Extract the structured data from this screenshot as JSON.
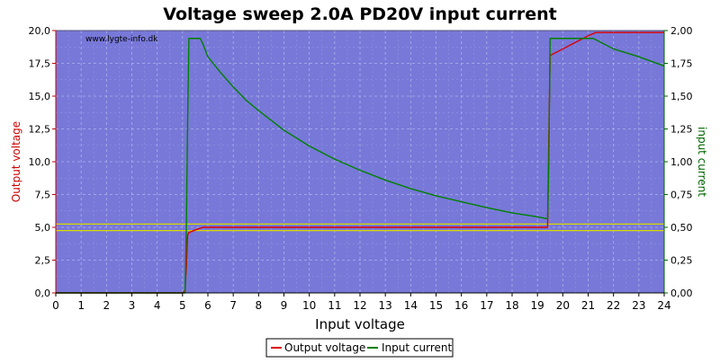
{
  "chart_data": {
    "type": "line",
    "title": "Voltage sweep 2.0A PD20V input current",
    "watermark": "www.lygte-info.dk",
    "xlabel": "Input voltage",
    "ylabel_left": "Output voltage",
    "ylabel_right": "input current",
    "xlim": [
      0,
      24
    ],
    "ylim_left": [
      0,
      20
    ],
    "ylim_right": [
      0,
      2
    ],
    "x_ticks": [
      "0",
      "1",
      "2",
      "3",
      "4",
      "5",
      "6",
      "7",
      "8",
      "9",
      "10",
      "11",
      "12",
      "13",
      "14",
      "15",
      "16",
      "17",
      "18",
      "19",
      "20",
      "21",
      "22",
      "23",
      "24"
    ],
    "y_left_ticks": [
      "0,0",
      "2,5",
      "5,0",
      "7,5",
      "10,0",
      "12,5",
      "15,0",
      "17,5",
      "20,0"
    ],
    "y_right_ticks": [
      "0,00",
      "0,25",
      "0,50",
      "0,75",
      "1,00",
      "1,25",
      "1,50",
      "1,75",
      "2,00"
    ],
    "grid": true,
    "legend_position": "bottom-center",
    "reference_lines_left": [
      4.75,
      5.25
    ],
    "colors": {
      "background": "#7778d8",
      "output": "#dd0000",
      "input": "#008000",
      "reference": "#d9d900",
      "grid": "#b0b2ea"
    },
    "series": [
      {
        "name": "Output voltage",
        "axis": "left",
        "x": [
          0,
          5.0,
          5.1,
          5.15,
          5.2,
          5.25,
          5.5,
          5.8,
          6.0,
          8,
          10,
          12,
          14,
          16,
          18,
          19.4,
          19.45,
          19.5,
          20.0,
          20.5,
          21.0,
          21.3,
          22,
          23,
          24
        ],
        "y": [
          0,
          0,
          0.2,
          2.0,
          4.4,
          4.6,
          4.8,
          5.0,
          5.0,
          5.0,
          5.0,
          5.0,
          5.0,
          5.0,
          5.0,
          5.0,
          12.0,
          18.1,
          18.6,
          19.1,
          19.6,
          19.85,
          19.85,
          19.85,
          19.85
        ]
      },
      {
        "name": "Input current",
        "axis": "right",
        "x": [
          0,
          5.1,
          5.15,
          5.2,
          5.25,
          5.5,
          5.7,
          5.8,
          6.0,
          6.5,
          7,
          7.5,
          8,
          9,
          10,
          11,
          12,
          13,
          14,
          15,
          16,
          17,
          18,
          19,
          19.4,
          19.45,
          19.5,
          20,
          20.5,
          21,
          21.2,
          22,
          23,
          24
        ],
        "y": [
          0,
          0,
          0.5,
          1.3,
          1.94,
          1.94,
          1.94,
          1.9,
          1.8,
          1.68,
          1.57,
          1.47,
          1.39,
          1.24,
          1.12,
          1.02,
          0.935,
          0.86,
          0.795,
          0.74,
          0.695,
          0.65,
          0.61,
          0.58,
          0.565,
          1.0,
          1.94,
          1.94,
          1.94,
          1.94,
          1.94,
          1.86,
          1.8,
          1.73
        ]
      }
    ]
  }
}
